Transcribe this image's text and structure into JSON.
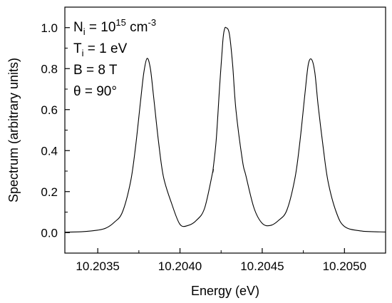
{
  "chart_data": {
    "type": "line",
    "title": "",
    "xlabel": "Energy (eV)",
    "ylabel": "Spectrum (arbitrary units)",
    "xlim": [
      10.2033,
      10.20525
    ],
    "ylim": [
      -0.1,
      1.1
    ],
    "x_ticks": [
      10.2035,
      10.204,
      10.2045,
      10.205
    ],
    "x_tick_labels": [
      "10.2035",
      "10.2040",
      "10.2045",
      "10.2050"
    ],
    "y_ticks": [
      0.0,
      0.2,
      0.4,
      0.6,
      0.8,
      1.0
    ],
    "y_tick_labels": [
      "0.0",
      "0.2",
      "0.4",
      "0.6",
      "0.8",
      "1.0"
    ],
    "grid": false,
    "legend": "none",
    "series": [
      {
        "color": "#000000",
        "x": [
          10.2033,
          10.2034,
          10.2035,
          10.20355,
          10.2036,
          10.20365,
          10.2037,
          10.20373,
          10.20376,
          10.20378,
          10.2038,
          10.20382,
          10.20384,
          10.20387,
          10.2039,
          10.20395,
          10.204,
          10.20405,
          10.2041,
          10.20415,
          10.2042,
          10.2042,
          10.20422,
          10.20424,
          10.20426,
          10.20427,
          10.20428,
          10.2043,
          10.20432,
          10.20434,
          10.20438,
          10.2044,
          10.20445,
          10.2045,
          10.20455,
          10.2046,
          10.20465,
          10.2047,
          10.20473,
          10.20476,
          10.20478,
          10.2048,
          10.20482,
          10.20484,
          10.20487,
          10.2049,
          10.20495,
          10.205,
          10.2051,
          10.20525
        ],
        "y": [
          0.002,
          0.004,
          0.012,
          0.022,
          0.05,
          0.1,
          0.25,
          0.42,
          0.64,
          0.78,
          0.85,
          0.8,
          0.66,
          0.44,
          0.27,
          0.14,
          0.04,
          0.035,
          0.06,
          0.12,
          0.3,
          0.3,
          0.45,
          0.7,
          0.93,
          0.99,
          1.0,
          0.97,
          0.82,
          0.6,
          0.35,
          0.28,
          0.12,
          0.045,
          0.035,
          0.06,
          0.11,
          0.27,
          0.45,
          0.68,
          0.82,
          0.845,
          0.78,
          0.62,
          0.42,
          0.25,
          0.1,
          0.03,
          0.008,
          0.003
        ]
      }
    ],
    "annotations": [
      {
        "main": "N",
        "sub": "i",
        "rest": " = 10",
        "sup": "15",
        "tail": " cm",
        "sup2": "-3"
      },
      {
        "main": "T",
        "sub": "i",
        "rest": " = 1 eV",
        "sup": "",
        "tail": "",
        "sup2": ""
      },
      {
        "main": "B = 8 T",
        "sub": "",
        "rest": "",
        "sup": "",
        "tail": "",
        "sup2": ""
      },
      {
        "main": "θ = 90°",
        "sub": "",
        "rest": "",
        "sup": "",
        "tail": "",
        "sup2": ""
      }
    ]
  }
}
